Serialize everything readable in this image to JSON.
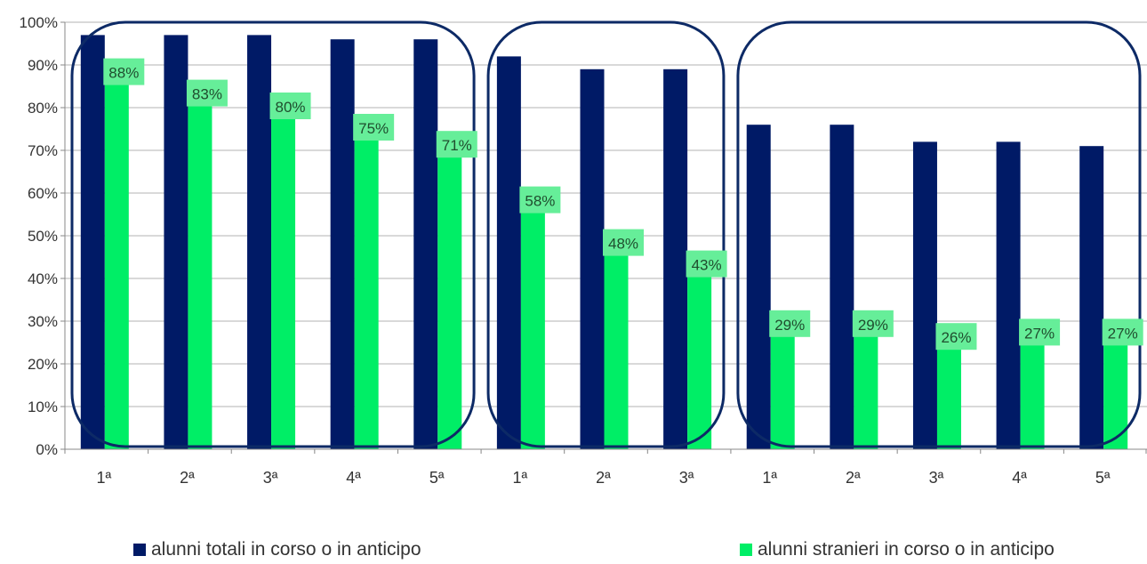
{
  "chart_data": {
    "type": "bar",
    "categories": [
      "1ª",
      "2ª",
      "3ª",
      "4ª",
      "5ª",
      "1ª",
      "2ª",
      "3ª",
      "1ª",
      "2ª",
      "3ª",
      "4ª",
      "5ª"
    ],
    "groups": [
      {
        "category_count": 5
      },
      {
        "category_count": 3
      },
      {
        "category_count": 5
      }
    ],
    "series": [
      {
        "name": "alunni totali in corso o in anticipo",
        "color": "#001a66",
        "values": [
          97,
          97,
          97,
          96,
          96,
          92,
          89,
          89,
          76,
          76,
          72,
          72,
          71
        ]
      },
      {
        "name": "alunni stranieri in corso o in anticipo",
        "color": "#00ee66",
        "values": [
          88,
          83,
          80,
          75,
          71,
          58,
          48,
          43,
          29,
          29,
          26,
          27,
          27
        ],
        "data_labels": [
          "88%",
          "83%",
          "80%",
          "75%",
          "71%",
          "58%",
          "48%",
          "43%",
          "29%",
          "29%",
          "26%",
          "27%",
          "27%"
        ]
      }
    ],
    "ylim": [
      0,
      100
    ],
    "yticks": [
      "0%",
      "10%",
      "20%",
      "30%",
      "40%",
      "50%",
      "60%",
      "70%",
      "80%",
      "90%",
      "100%"
    ],
    "grid": true,
    "legend_position": "bottom",
    "label_background_color": "#66ee99",
    "group_outline_color": "#0d2a66"
  }
}
